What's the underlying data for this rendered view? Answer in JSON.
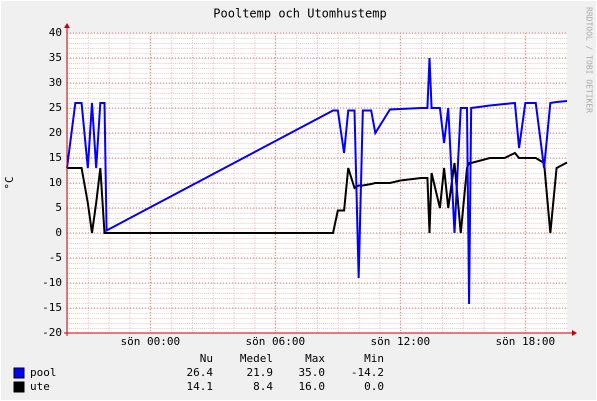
{
  "chart_data": {
    "type": "line",
    "title": "Pooltemp och Utomhustemp",
    "y_label": "°C",
    "watermark": "RRDTOOL / TOBI OETIKER",
    "x": [
      -4,
      -3.6,
      -3.3,
      -3.0,
      -2.8,
      -2.6,
      -2.4,
      -2.2,
      -2.1,
      8.77,
      9.0,
      9.3,
      9.5,
      9.8,
      10.0,
      10.2,
      10.6,
      10.8,
      11.5,
      12.0,
      13.0,
      13.3,
      13.4,
      13.5,
      13.9,
      14.1,
      14.3,
      14.6,
      14.9,
      15.2,
      15.3,
      15.4,
      16.3,
      17.0,
      17.5,
      17.7,
      18.0,
      18.5,
      18.9,
      19.2,
      19.5,
      20.0
    ],
    "series": [
      {
        "name": "pool",
        "color": "#0000ff",
        "values": [
          13,
          26,
          26,
          13,
          26,
          13,
          26,
          26,
          0.5,
          24.5,
          24.5,
          16,
          24.5,
          24.5,
          -9,
          24.5,
          24.5,
          20,
          24.7,
          24.8,
          25,
          25,
          35,
          25,
          25,
          18,
          25,
          0,
          25,
          25,
          -14.2,
          25,
          25.5,
          25.8,
          26,
          17,
          26,
          26,
          13,
          26,
          26.2,
          26.4
        ],
        "stats": [
          "26.4",
          "21.9",
          "35.0",
          "-14.2"
        ]
      },
      {
        "name": "ute",
        "color": "#000000",
        "values": [
          13,
          13,
          13,
          6,
          0,
          6,
          13,
          0,
          0,
          0,
          4.5,
          4.5,
          13,
          9,
          9.5,
          9.5,
          9.8,
          10,
          10,
          10.5,
          11,
          11,
          0,
          12,
          5,
          13,
          5,
          14,
          0,
          13,
          14,
          14,
          15,
          15,
          16,
          15,
          15,
          15,
          14,
          0,
          13,
          14.1
        ],
        "stats": [
          "14.1",
          "8.4",
          "16.0",
          "0.0"
        ]
      }
    ],
    "stats_headers": [
      "Nu",
      "Medel",
      "Max",
      "Min"
    ],
    "xlim": [
      -4,
      20
    ],
    "xticks": [
      {
        "value": 0,
        "label": "sön 00:00"
      },
      {
        "value": 6,
        "label": "sön 06:00"
      },
      {
        "value": 12,
        "label": "sön 12:00"
      },
      {
        "value": 18,
        "label": "sön 18:00"
      }
    ],
    "ylim": [
      -20,
      40
    ],
    "yticks": [
      -20,
      -15,
      -10,
      -5,
      0,
      5,
      10,
      15,
      20,
      25,
      30,
      35,
      40
    ],
    "grid": true
  }
}
